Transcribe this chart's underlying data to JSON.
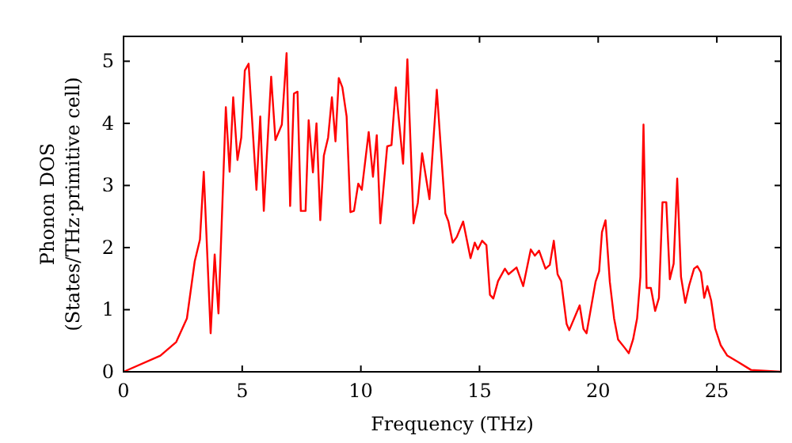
{
  "chart_data": {
    "type": "line",
    "xlabel": "Frequency (THz)",
    "ylabel": "Phonon DOS\n(States/THz·primitive cell)",
    "xlim": [
      0,
      27.7
    ],
    "ylim": [
      0,
      5.4
    ],
    "xticks": [
      0,
      5,
      10,
      15,
      20,
      25
    ],
    "yticks": [
      0,
      1,
      2,
      3,
      4,
      5
    ],
    "grid": false,
    "series": [
      {
        "color": "#ff0000",
        "x": [
          0,
          1.55,
          2.22,
          2.67,
          3.0,
          3.22,
          3.38,
          3.67,
          3.84,
          4.0,
          4.31,
          4.47,
          4.62,
          4.8,
          4.96,
          5.11,
          5.27,
          5.6,
          5.76,
          5.91,
          6.22,
          6.4,
          6.67,
          6.87,
          7.02,
          7.18,
          7.33,
          7.47,
          7.67,
          7.8,
          7.98,
          8.13,
          8.29,
          8.44,
          8.62,
          8.78,
          8.93,
          9.07,
          9.22,
          9.4,
          9.56,
          9.71,
          9.89,
          10.04,
          10.33,
          10.51,
          10.67,
          10.82,
          11.11,
          11.29,
          11.47,
          11.78,
          11.96,
          12.22,
          12.4,
          12.58,
          12.89,
          13.2,
          13.56,
          13.69,
          13.87,
          14.04,
          14.31,
          14.62,
          14.8,
          14.93,
          15.11,
          15.29,
          15.44,
          15.58,
          15.78,
          16.07,
          16.22,
          16.56,
          16.84,
          17.16,
          17.33,
          17.51,
          17.78,
          17.96,
          18.13,
          18.29,
          18.44,
          18.67,
          18.78,
          19.22,
          19.38,
          19.51,
          19.89,
          20.04,
          20.16,
          20.31,
          20.49,
          20.67,
          20.84,
          21.11,
          21.29,
          21.47,
          21.64,
          21.78,
          21.91,
          22.04,
          22.22,
          22.4,
          22.56,
          22.71,
          22.87,
          23.02,
          23.18,
          23.33,
          23.49,
          23.67,
          23.84,
          24.04,
          24.18,
          24.33,
          24.47,
          24.6,
          24.76,
          24.93,
          25.16,
          25.44,
          25.89,
          26.44,
          27.7
        ],
        "values": [
          0,
          0.26,
          0.48,
          0.86,
          1.78,
          2.13,
          3.22,
          0.62,
          1.89,
          0.94,
          4.26,
          3.22,
          4.42,
          3.41,
          3.77,
          4.85,
          4.96,
          2.93,
          4.11,
          2.59,
          4.75,
          3.73,
          3.98,
          5.13,
          2.67,
          4.48,
          4.51,
          2.59,
          2.59,
          4.05,
          3.21,
          4.0,
          2.44,
          3.48,
          3.77,
          4.42,
          3.71,
          4.73,
          4.58,
          4.11,
          2.57,
          2.59,
          3.03,
          2.93,
          3.86,
          3.14,
          3.81,
          2.39,
          3.63,
          3.65,
          4.58,
          3.35,
          5.03,
          2.39,
          2.72,
          3.52,
          2.78,
          4.54,
          2.55,
          2.42,
          2.08,
          2.17,
          2.42,
          1.83,
          2.08,
          1.97,
          2.11,
          2.04,
          1.24,
          1.18,
          1.46,
          1.66,
          1.57,
          1.68,
          1.38,
          1.97,
          1.87,
          1.95,
          1.66,
          1.72,
          2.11,
          1.57,
          1.46,
          0.77,
          0.67,
          1.07,
          0.69,
          0.62,
          1.45,
          1.62,
          2.25,
          2.44,
          1.45,
          0.86,
          0.52,
          0.39,
          0.3,
          0.52,
          0.86,
          1.53,
          3.98,
          1.35,
          1.35,
          0.98,
          1.19,
          2.73,
          2.73,
          1.49,
          1.74,
          3.11,
          1.53,
          1.11,
          1.4,
          1.66,
          1.7,
          1.6,
          1.19,
          1.38,
          1.15,
          0.7,
          0.43,
          0.26,
          0.16,
          0.03,
          0
        ]
      }
    ]
  }
}
